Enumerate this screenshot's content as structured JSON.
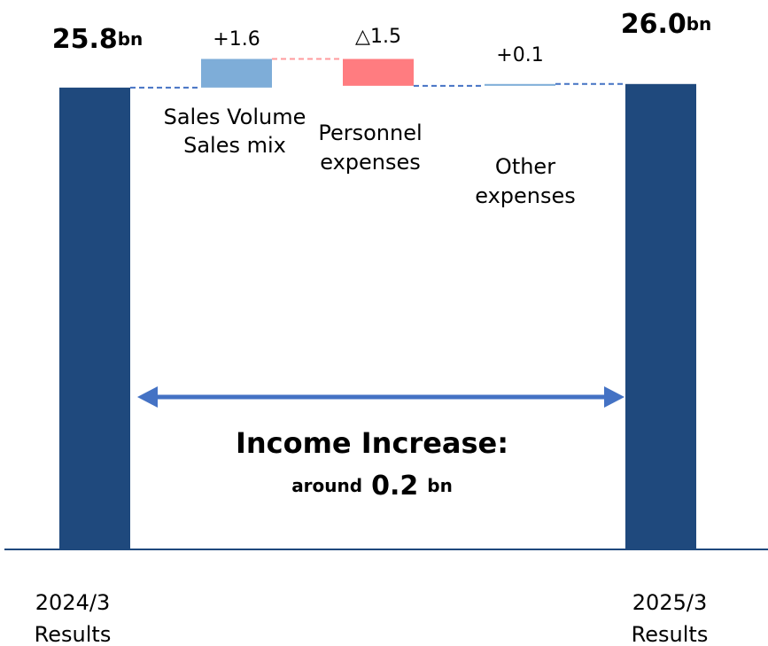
{
  "chart_data": {
    "type": "waterfall",
    "categories": [
      [
        "2024/3",
        "Results"
      ],
      [
        "Sales Volume",
        "Sales mix"
      ],
      [
        "Personnel",
        "expenses"
      ],
      [
        "Other",
        "expenses"
      ],
      [
        "2025/3",
        "Results"
      ]
    ],
    "values": [
      25.8,
      1.6,
      -1.5,
      0.1,
      26.0
    ],
    "value_labels": [
      "25.8",
      "+1.6",
      "△1.5",
      "+0.1",
      "26.0"
    ],
    "total_unit": "bn",
    "totals": [
      true,
      false,
      false,
      false,
      true
    ],
    "colors": [
      "#1f497d",
      "#7eadd8",
      "#ff7c80",
      "#7eadd8",
      "#1f497d"
    ],
    "ylim": [
      0,
      30
    ],
    "annotation": {
      "title": "Income Increase:",
      "prefix": "around",
      "value": "0.2",
      "unit": "bn"
    }
  }
}
